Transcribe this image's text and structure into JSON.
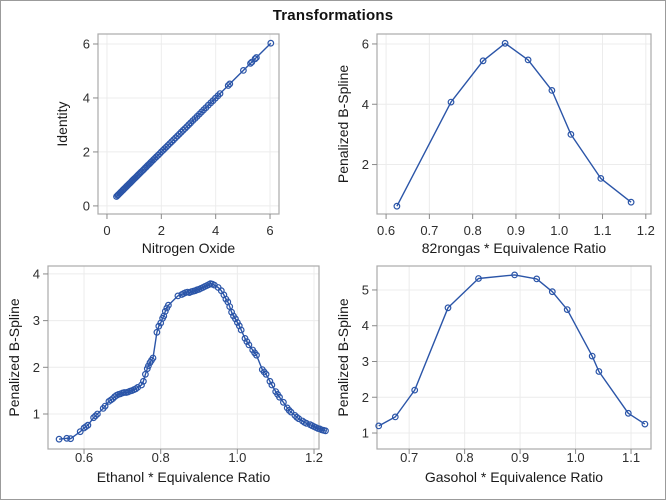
{
  "title": "Transformations",
  "colors": {
    "series": "#2b55a8",
    "grid": "#ececec",
    "frame": "#aaaaaa",
    "tick": "#8a8a8a",
    "tick_label": "#2e2e2e",
    "axis_title": "#1a1a1a",
    "title": "#111111",
    "background": "#ffffff",
    "figure_border": "#9b9b9b"
  },
  "chart_data": [
    {
      "id": "identity-vs-nitrogen-oxide",
      "type": "line",
      "markers": true,
      "title": "",
      "xlabel": "Nitrogen Oxide",
      "ylabel": "Identity",
      "xlim": [
        -0.33,
        6.33
      ],
      "ylim": [
        -0.3,
        6.37
      ],
      "xticks": [
        0,
        2,
        4,
        6
      ],
      "xtick_labels": [
        "0",
        "2",
        "4",
        "6"
      ],
      "yticks": [
        0,
        2,
        4,
        6
      ],
      "ytick_labels": [
        "0",
        "2",
        "4",
        "6"
      ],
      "grid": true,
      "y_equals_x": true,
      "x_values": [
        0.35,
        0.39,
        0.42,
        0.46,
        0.5,
        0.53,
        0.57,
        0.6,
        0.63,
        0.66,
        0.7,
        0.73,
        0.77,
        0.81,
        0.85,
        0.89,
        0.93,
        0.97,
        1.01,
        1.05,
        1.09,
        1.13,
        1.17,
        1.22,
        1.26,
        1.31,
        1.35,
        1.4,
        1.45,
        1.5,
        1.55,
        1.6,
        1.65,
        1.71,
        1.76,
        1.82,
        1.88,
        1.94,
        2.0,
        2.06,
        2.12,
        2.18,
        2.24,
        2.31,
        2.38,
        2.45,
        2.52,
        2.59,
        2.66,
        2.73,
        2.8,
        2.87,
        2.94,
        3.01,
        3.08,
        3.16,
        3.24,
        3.32,
        3.4,
        3.48,
        3.56,
        3.64,
        3.73,
        3.82,
        3.9,
        3.99,
        4.08,
        4.16,
        4.46,
        4.52,
        5.02,
        5.28,
        5.33,
        5.45,
        5.5,
        6.03
      ]
    },
    {
      "id": "bspline-vs-82rongas",
      "type": "line",
      "markers": true,
      "title": "",
      "xlabel": "82rongas * Equivalence Ratio",
      "ylabel": "Penalized B-Spline",
      "xlim": [
        0.579,
        1.212
      ],
      "ylim": [
        0.36,
        6.33
      ],
      "xticks": [
        0.6,
        0.7,
        0.8,
        0.9,
        1.0,
        1.1,
        1.2
      ],
      "xtick_labels": [
        "0.6",
        "0.7",
        "0.8",
        "0.9",
        "1.0",
        "1.1",
        "1.2"
      ],
      "yticks": [
        2,
        4,
        6
      ],
      "ytick_labels": [
        "2",
        "4",
        "6"
      ],
      "grid": true,
      "points": [
        [
          0.625,
          0.62
        ],
        [
          0.75,
          4.07
        ],
        [
          0.824,
          5.44
        ],
        [
          0.875,
          6.02
        ],
        [
          0.928,
          5.47
        ],
        [
          0.983,
          4.46
        ],
        [
          1.027,
          3.0
        ],
        [
          1.096,
          1.54
        ],
        [
          1.166,
          0.75
        ]
      ]
    },
    {
      "id": "bspline-vs-ethanol",
      "type": "line",
      "markers": true,
      "title": "",
      "xlabel": "Ethanol * Equivalence Ratio",
      "ylabel": "Penalized B-Spline",
      "xlim": [
        0.506,
        1.213
      ],
      "ylim": [
        0.25,
        4.17
      ],
      "xticks": [
        0.6,
        0.8,
        1.0,
        1.2
      ],
      "xtick_labels": [
        "0.6",
        "0.8",
        "1.0",
        "1.2"
      ],
      "yticks": [
        1,
        2,
        3,
        4
      ],
      "ytick_labels": [
        "1",
        "2",
        "3",
        "4"
      ],
      "grid": true,
      "points": [
        [
          0.535,
          0.46
        ],
        [
          0.555,
          0.48
        ],
        [
          0.565,
          0.47
        ],
        [
          0.59,
          0.62
        ],
        [
          0.6,
          0.7
        ],
        [
          0.605,
          0.73
        ],
        [
          0.61,
          0.76
        ],
        [
          0.625,
          0.92
        ],
        [
          0.63,
          0.96
        ],
        [
          0.635,
          1.0
        ],
        [
          0.65,
          1.12
        ],
        [
          0.655,
          1.17
        ],
        [
          0.665,
          1.27
        ],
        [
          0.67,
          1.3
        ],
        [
          0.675,
          1.33
        ],
        [
          0.68,
          1.37
        ],
        [
          0.685,
          1.4
        ],
        [
          0.69,
          1.42
        ],
        [
          0.695,
          1.43
        ],
        [
          0.7,
          1.45
        ],
        [
          0.705,
          1.46
        ],
        [
          0.71,
          1.46
        ],
        [
          0.715,
          1.47
        ],
        [
          0.72,
          1.49
        ],
        [
          0.725,
          1.5
        ],
        [
          0.73,
          1.52
        ],
        [
          0.735,
          1.54
        ],
        [
          0.74,
          1.57
        ],
        [
          0.75,
          1.62
        ],
        [
          0.755,
          1.7
        ],
        [
          0.76,
          1.85
        ],
        [
          0.765,
          1.97
        ],
        [
          0.768,
          2.03
        ],
        [
          0.772,
          2.1
        ],
        [
          0.776,
          2.15
        ],
        [
          0.78,
          2.2
        ],
        [
          0.79,
          2.75
        ],
        [
          0.795,
          2.88
        ],
        [
          0.8,
          2.95
        ],
        [
          0.805,
          3.05
        ],
        [
          0.808,
          3.1
        ],
        [
          0.812,
          3.2
        ],
        [
          0.816,
          3.27
        ],
        [
          0.82,
          3.33
        ],
        [
          0.845,
          3.53
        ],
        [
          0.855,
          3.56
        ],
        [
          0.86,
          3.58
        ],
        [
          0.865,
          3.6
        ],
        [
          0.87,
          3.61
        ],
        [
          0.875,
          3.6
        ],
        [
          0.88,
          3.62
        ],
        [
          0.885,
          3.63
        ],
        [
          0.89,
          3.64
        ],
        [
          0.895,
          3.66
        ],
        [
          0.9,
          3.67
        ],
        [
          0.905,
          3.69
        ],
        [
          0.91,
          3.71
        ],
        [
          0.915,
          3.73
        ],
        [
          0.92,
          3.75
        ],
        [
          0.925,
          3.77
        ],
        [
          0.93,
          3.79
        ],
        [
          0.935,
          3.78
        ],
        [
          0.94,
          3.76
        ],
        [
          0.95,
          3.71
        ],
        [
          0.958,
          3.64
        ],
        [
          0.965,
          3.55
        ],
        [
          0.97,
          3.46
        ],
        [
          0.975,
          3.4
        ],
        [
          0.98,
          3.3
        ],
        [
          0.985,
          3.18
        ],
        [
          0.99,
          3.1
        ],
        [
          0.995,
          3.04
        ],
        [
          1.0,
          2.96
        ],
        [
          1.005,
          2.89
        ],
        [
          1.01,
          2.8
        ],
        [
          1.02,
          2.62
        ],
        [
          1.025,
          2.55
        ],
        [
          1.03,
          2.48
        ],
        [
          1.04,
          2.37
        ],
        [
          1.045,
          2.31
        ],
        [
          1.05,
          2.26
        ],
        [
          1.065,
          1.95
        ],
        [
          1.07,
          1.9
        ],
        [
          1.075,
          1.85
        ],
        [
          1.085,
          1.7
        ],
        [
          1.09,
          1.62
        ],
        [
          1.1,
          1.48
        ],
        [
          1.105,
          1.42
        ],
        [
          1.11,
          1.36
        ],
        [
          1.12,
          1.25
        ],
        [
          1.13,
          1.13
        ],
        [
          1.135,
          1.08
        ],
        [
          1.14,
          1.04
        ],
        [
          1.15,
          0.97
        ],
        [
          1.155,
          0.93
        ],
        [
          1.16,
          0.9
        ],
        [
          1.17,
          0.85
        ],
        [
          1.175,
          0.82
        ],
        [
          1.18,
          0.8
        ],
        [
          1.19,
          0.77
        ],
        [
          1.195,
          0.75
        ],
        [
          1.2,
          0.73
        ],
        [
          1.205,
          0.71
        ],
        [
          1.21,
          0.69
        ],
        [
          1.215,
          0.68
        ],
        [
          1.22,
          0.66
        ],
        [
          1.225,
          0.65
        ],
        [
          1.23,
          0.64
        ]
      ]
    },
    {
      "id": "bspline-vs-gasohol",
      "type": "line",
      "markers": true,
      "title": "",
      "xlabel": "Gasohol * Equivalence Ratio",
      "ylabel": "Penalized B-Spline",
      "xlim": [
        0.642,
        1.136
      ],
      "ylim": [
        0.553,
        5.67
      ],
      "xticks": [
        0.7,
        0.8,
        0.9,
        1.0,
        1.1
      ],
      "xtick_labels": [
        "0.7",
        "0.8",
        "0.9",
        "1.0",
        "1.1"
      ],
      "yticks": [
        1,
        2,
        3,
        4,
        5
      ],
      "ytick_labels": [
        "1",
        "2",
        "3",
        "4",
        "5"
      ],
      "grid": true,
      "points": [
        [
          0.645,
          1.2
        ],
        [
          0.675,
          1.45
        ],
        [
          0.71,
          2.2
        ],
        [
          0.77,
          4.5
        ],
        [
          0.825,
          5.32
        ],
        [
          0.89,
          5.42
        ],
        [
          0.93,
          5.31
        ],
        [
          0.958,
          4.95
        ],
        [
          0.985,
          4.45
        ],
        [
          1.03,
          3.15
        ],
        [
          1.042,
          2.72
        ],
        [
          1.095,
          1.55
        ],
        [
          1.125,
          1.25
        ]
      ]
    }
  ]
}
